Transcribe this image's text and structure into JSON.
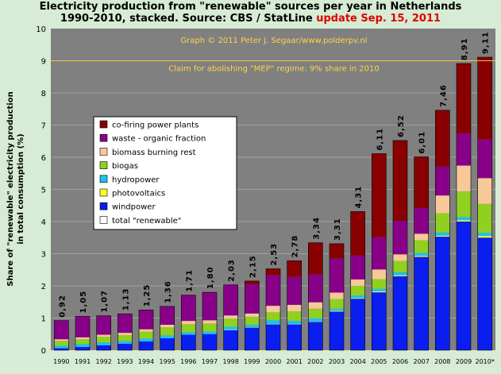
{
  "chart_data": {
    "type": "bar",
    "stacked": true,
    "title_line1": "Electricity production from \"renewable\" sources per year in Netherlands",
    "title_line2": "1990-2010, stacked. Source: CBS / StatLine",
    "title_update": "update Sep. 15, 2011",
    "ylabel_line1": "Share of \"renewable\" electricity production",
    "ylabel_line2": "in total consumption (%)",
    "xlabel": "",
    "ylim": [
      0,
      10
    ],
    "yticks": [
      "0",
      "1",
      "2",
      "3",
      "4",
      "5",
      "6",
      "7",
      "8",
      "9",
      "10"
    ],
    "grid": true,
    "legend_position": "upper-left",
    "categories": [
      "1990",
      "1991",
      "1992",
      "1993",
      "1994",
      "1995",
      "1996",
      "1997",
      "1998",
      "1999",
      "2000",
      "2001",
      "2002",
      "2003",
      "2004",
      "2005",
      "2006",
      "2007",
      "2008",
      "2009",
      "2010*"
    ],
    "series": [
      {
        "name": "windpower",
        "color": "#0a1ef0",
        "values": [
          0.06,
          0.1,
          0.15,
          0.2,
          0.27,
          0.37,
          0.48,
          0.5,
          0.62,
          0.7,
          0.8,
          0.8,
          0.88,
          1.2,
          1.6,
          1.8,
          2.3,
          2.9,
          3.53,
          4.0,
          3.5
        ]
      },
      {
        "name": "photovoltaics",
        "color": "#ffff2a",
        "values": [
          0,
          0,
          0,
          0,
          0,
          0,
          0,
          0,
          0.01,
          0.01,
          0.01,
          0.01,
          0.01,
          0.02,
          0.02,
          0.03,
          0.03,
          0.03,
          0.03,
          0.04,
          0.05
        ]
      },
      {
        "name": "hydropower",
        "color": "#20c0f0",
        "values": [
          0.08,
          0.09,
          0.09,
          0.08,
          0.09,
          0.09,
          0.08,
          0.08,
          0.1,
          0.08,
          0.12,
          0.1,
          0.1,
          0.07,
          0.08,
          0.08,
          0.1,
          0.09,
          0.1,
          0.1,
          0.1
        ]
      },
      {
        "name": "biogas",
        "color": "#90d020",
        "values": [
          0.15,
          0.15,
          0.18,
          0.19,
          0.22,
          0.25,
          0.25,
          0.25,
          0.25,
          0.25,
          0.25,
          0.3,
          0.3,
          0.3,
          0.3,
          0.3,
          0.35,
          0.4,
          0.6,
          0.8,
          0.9
        ]
      },
      {
        "name": "biomass burning rest",
        "color": "#f8c898",
        "values": [
          0.05,
          0.06,
          0.06,
          0.07,
          0.07,
          0.08,
          0.1,
          0.1,
          0.1,
          0.1,
          0.2,
          0.2,
          0.2,
          0.2,
          0.2,
          0.3,
          0.2,
          0.2,
          0.55,
          0.8,
          0.8
        ]
      },
      {
        "name": "waste - organic fraction",
        "color": "#880088",
        "values": [
          0.58,
          0.65,
          0.59,
          0.59,
          0.6,
          0.57,
          0.8,
          0.87,
          0.95,
          0.91,
          0.95,
          0.87,
          0.86,
          1.06,
          0.74,
          1.0,
          1.04,
          0.8,
          0.9,
          1.0,
          1.2
        ]
      },
      {
        "name": "co-firing power plants",
        "color": "#880000",
        "values": [
          0,
          0,
          0,
          0,
          0,
          0,
          0,
          0,
          0,
          0.1,
          0.2,
          0.5,
          0.99,
          0.46,
          1.37,
          2.6,
          2.5,
          1.59,
          1.75,
          2.18,
          2.56
        ]
      }
    ],
    "totals_series_name": "total \"renewable\"",
    "totals": [
      "0,92",
      "1,05",
      "1,07",
      "1,13",
      "1,25",
      "1,36",
      "1,71",
      "1,80",
      "2,03",
      "2,15",
      "2,53",
      "2,78",
      "3,34",
      "3,31",
      "4,31",
      "6,11",
      "6,52",
      "6,01",
      "7,46",
      "8,91",
      "9,11"
    ],
    "total_values": [
      0.92,
      1.05,
      1.07,
      1.13,
      1.25,
      1.36,
      1.71,
      1.8,
      2.03,
      2.15,
      2.53,
      2.78,
      3.34,
      3.31,
      4.31,
      6.11,
      6.52,
      6.01,
      7.46,
      8.91,
      9.11
    ],
    "reference_line": {
      "value": 9,
      "label": "Claim for abolishing \"MEP\" regime: 9% share in 2010",
      "color": "#ffc040"
    },
    "credit": "Graph © 2011 Peter J. Segaar/www.polderpv.nl",
    "plot_background": "#808080"
  }
}
